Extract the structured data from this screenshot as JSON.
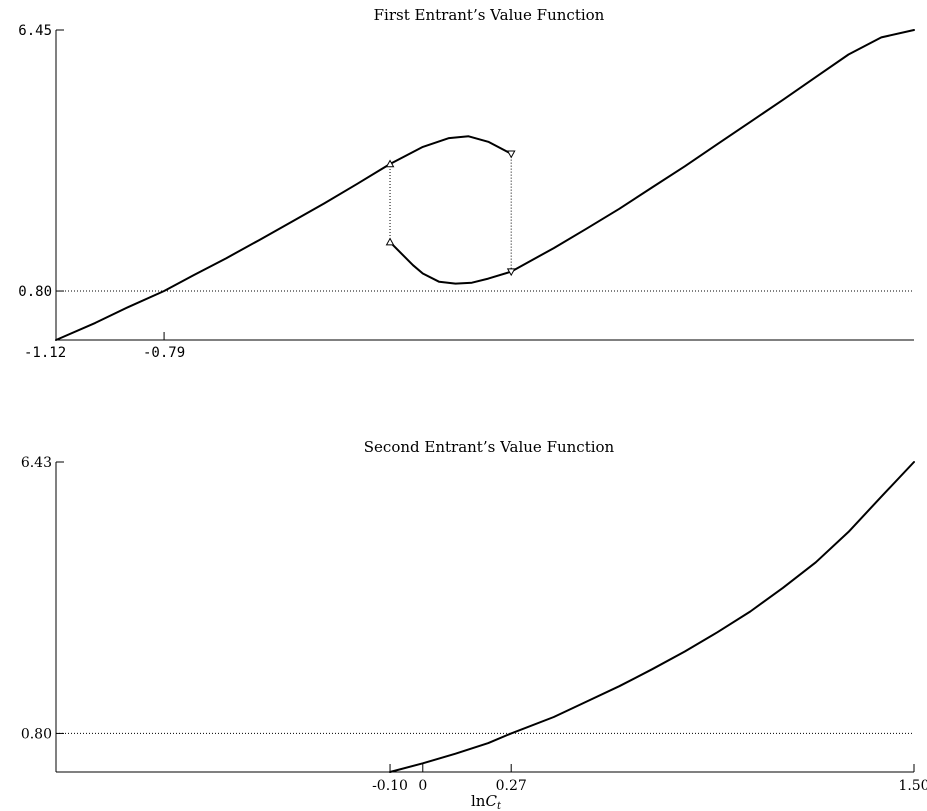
{
  "chart_data": [
    {
      "type": "line",
      "title": "First Entrant’s Value Function",
      "xlabel": "",
      "ylabel": "",
      "xlim": [
        -1.12,
        1.5
      ],
      "ylim": [
        -0.26,
        6.45
      ],
      "grid": false,
      "y_ticks": [
        {
          "value": 6.45,
          "label": "6.45"
        },
        {
          "value": 0.8,
          "label": "0.80"
        }
      ],
      "x_ticks": [
        {
          "value": -1.12,
          "label": "-1.12"
        },
        {
          "value": -0.79,
          "label": "-0.79"
        }
      ],
      "reference_line_y": 0.8,
      "series": [
        {
          "segment": "lower-branch",
          "x": [
            -1.12,
            -1.0,
            -0.9,
            -0.79,
            -0.7,
            -0.6,
            -0.5,
            -0.4,
            -0.3,
            -0.2,
            -0.1
          ],
          "y": [
            -0.26,
            0.11,
            0.45,
            0.8,
            1.14,
            1.51,
            1.9,
            2.3,
            2.7,
            3.12,
            3.55
          ]
        },
        {
          "segment": "upper-arc",
          "x": [
            -0.1,
            0.0,
            0.08,
            0.14,
            0.2,
            0.27
          ],
          "y": [
            3.55,
            3.92,
            4.11,
            4.15,
            4.03,
            3.77
          ]
        },
        {
          "segment": "dip-arc",
          "x": [
            -0.1,
            -0.03,
            0.0,
            0.05,
            0.1,
            0.15,
            0.2,
            0.27
          ],
          "y": [
            1.86,
            1.36,
            1.18,
            1.0,
            0.96,
            0.98,
            1.07,
            1.22
          ]
        },
        {
          "segment": "upper-branch",
          "x": [
            0.27,
            0.4,
            0.5,
            0.6,
            0.7,
            0.8,
            0.9,
            1.0,
            1.1,
            1.2,
            1.3,
            1.4,
            1.5
          ],
          "y": [
            1.22,
            1.73,
            2.15,
            2.58,
            3.04,
            3.5,
            3.98,
            4.46,
            4.94,
            5.43,
            5.92,
            6.29,
            6.45
          ]
        }
      ],
      "markers": [
        {
          "x": -0.1,
          "y": 3.55,
          "shape": "triangle-up"
        },
        {
          "x": -0.1,
          "y": 1.86,
          "shape": "triangle-up"
        },
        {
          "x": 0.27,
          "y": 3.77,
          "shape": "triangle-down"
        },
        {
          "x": 0.27,
          "y": 1.22,
          "shape": "triangle-down"
        }
      ],
      "connectors": [
        {
          "x": -0.1,
          "y_from": 1.86,
          "y_to": 3.55
        },
        {
          "x": 0.27,
          "y_from": 1.22,
          "y_to": 3.77
        }
      ]
    },
    {
      "type": "line",
      "title": "Second Entrant’s Value Function",
      "xlabel": "lnC_t",
      "ylabel": "",
      "xlim": [
        -1.12,
        1.5
      ],
      "ylim": [
        0.0,
        6.43
      ],
      "grid": false,
      "y_ticks": [
        {
          "value": 6.43,
          "label": "6.43"
        },
        {
          "value": 0.8,
          "label": "0.80"
        }
      ],
      "x_ticks": [
        {
          "value": -0.1,
          "label": "-0.10"
        },
        {
          "value": 0.0,
          "label": "0"
        },
        {
          "value": 0.27,
          "label": "0.27"
        },
        {
          "value": 1.5,
          "label": "1.50"
        }
      ],
      "reference_line_y": 0.8,
      "series": [
        {
          "segment": "curve",
          "x": [
            -0.1,
            0.0,
            0.1,
            0.2,
            0.27,
            0.4,
            0.5,
            0.6,
            0.7,
            0.8,
            0.9,
            1.0,
            1.1,
            1.2,
            1.3,
            1.4,
            1.5
          ],
          "y": [
            0.0,
            0.18,
            0.38,
            0.6,
            0.8,
            1.14,
            1.46,
            1.78,
            2.13,
            2.5,
            2.9,
            3.33,
            3.82,
            4.35,
            4.98,
            5.71,
            6.43
          ]
        }
      ]
    }
  ]
}
